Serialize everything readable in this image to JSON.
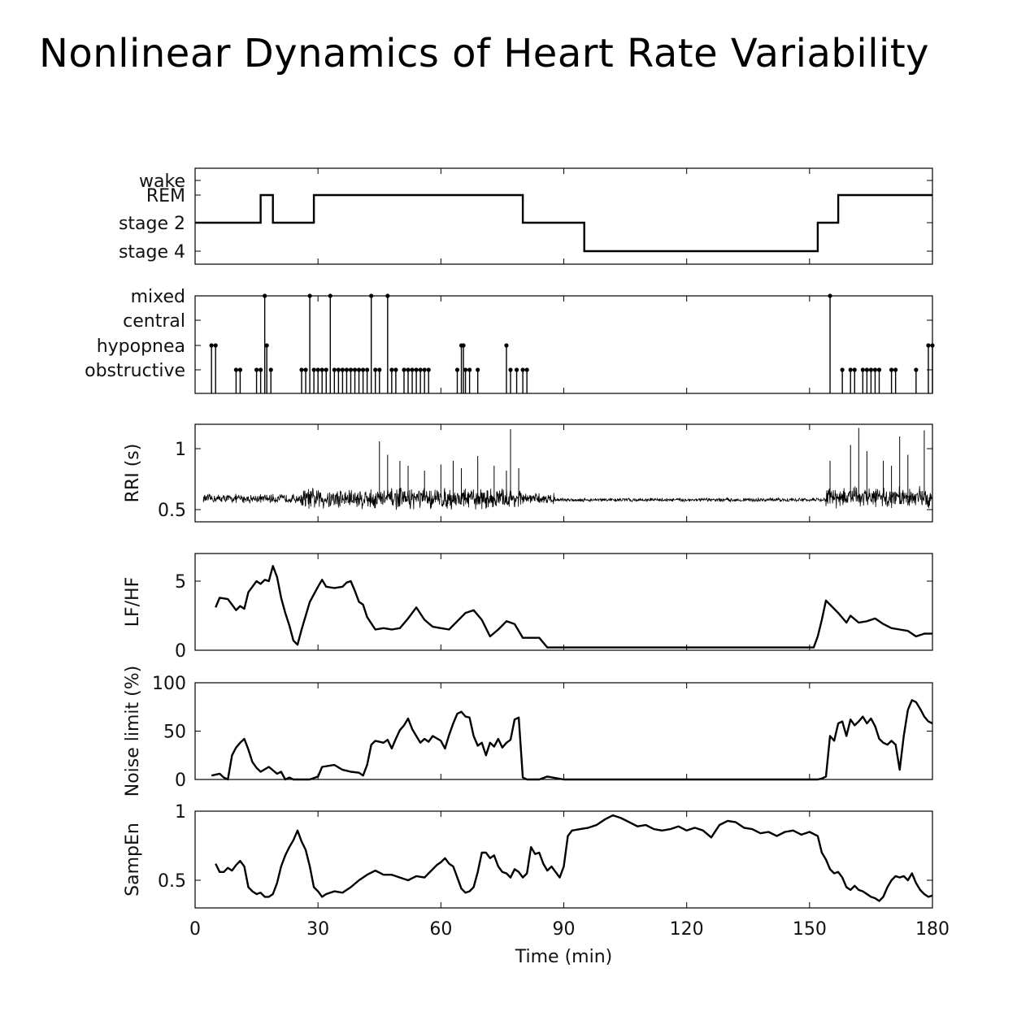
{
  "title": "Nonlinear Dynamics of Heart Rate Variability",
  "chart_data": {
    "type": "line",
    "xlabel": "Time (min)",
    "xlim": [
      0,
      180
    ],
    "xticks": [
      "0",
      "30",
      "60",
      "90",
      "120",
      "150",
      "180"
    ],
    "line_color": "#000000",
    "panels": [
      {
        "key": "sleep",
        "type": "step",
        "ylabel": "",
        "categories": [
          "wake",
          "REM",
          "stage 2",
          "stage 4"
        ],
        "x": [
          0,
          16,
          16,
          19,
          19,
          29,
          29,
          80,
          80,
          83,
          83,
          95,
          95,
          152,
          152,
          157,
          157,
          180
        ],
        "y": [
          "stage 2",
          "stage 2",
          "REM",
          "REM",
          "stage 2",
          "stage 2",
          "REM",
          "REM",
          "stage 2",
          "stage 2",
          "stage 2",
          "stage 2",
          "stage 4",
          "stage 4",
          "stage 2",
          "stage 2",
          "REM",
          "REM"
        ]
      },
      {
        "key": "apnea",
        "type": "stem",
        "ylabel": "",
        "categories": [
          "mixed",
          "central",
          "hypopnea",
          "obstructive"
        ],
        "events": [
          {
            "t": 4,
            "type": "hypopnea"
          },
          {
            "t": 5,
            "type": "hypopnea"
          },
          {
            "t": 10,
            "type": "obstructive"
          },
          {
            "t": 11,
            "type": "obstructive"
          },
          {
            "t": 15,
            "type": "obstructive"
          },
          {
            "t": 16,
            "type": "obstructive"
          },
          {
            "t": 17,
            "type": "mixed"
          },
          {
            "t": 17.5,
            "type": "hypopnea"
          },
          {
            "t": 18.5,
            "type": "obstructive"
          },
          {
            "t": 26,
            "type": "obstructive"
          },
          {
            "t": 27,
            "type": "obstructive"
          },
          {
            "t": 28,
            "type": "mixed"
          },
          {
            "t": 29,
            "type": "obstructive"
          },
          {
            "t": 30,
            "type": "obstructive"
          },
          {
            "t": 31,
            "type": "obstructive"
          },
          {
            "t": 32,
            "type": "obstructive"
          },
          {
            "t": 33,
            "type": "mixed"
          },
          {
            "t": 34,
            "type": "obstructive"
          },
          {
            "t": 35,
            "type": "obstructive"
          },
          {
            "t": 36,
            "type": "obstructive"
          },
          {
            "t": 37,
            "type": "obstructive"
          },
          {
            "t": 38,
            "type": "obstructive"
          },
          {
            "t": 39,
            "type": "obstructive"
          },
          {
            "t": 40,
            "type": "obstructive"
          },
          {
            "t": 41,
            "type": "obstructive"
          },
          {
            "t": 42,
            "type": "obstructive"
          },
          {
            "t": 43,
            "type": "mixed"
          },
          {
            "t": 44,
            "type": "obstructive"
          },
          {
            "t": 45,
            "type": "obstructive"
          },
          {
            "t": 47,
            "type": "mixed"
          },
          {
            "t": 48,
            "type": "obstructive"
          },
          {
            "t": 49,
            "type": "obstructive"
          },
          {
            "t": 51,
            "type": "obstructive"
          },
          {
            "t": 52,
            "type": "obstructive"
          },
          {
            "t": 53,
            "type": "obstructive"
          },
          {
            "t": 54,
            "type": "obstructive"
          },
          {
            "t": 55,
            "type": "obstructive"
          },
          {
            "t": 56,
            "type": "obstructive"
          },
          {
            "t": 57,
            "type": "obstructive"
          },
          {
            "t": 64,
            "type": "obstructive"
          },
          {
            "t": 65,
            "type": "hypopnea"
          },
          {
            "t": 65.5,
            "type": "hypopnea"
          },
          {
            "t": 66,
            "type": "obstructive"
          },
          {
            "t": 67,
            "type": "obstructive"
          },
          {
            "t": 69,
            "type": "obstructive"
          },
          {
            "t": 76,
            "type": "hypopnea"
          },
          {
            "t": 77,
            "type": "obstructive"
          },
          {
            "t": 78.5,
            "type": "obstructive"
          },
          {
            "t": 80,
            "type": "obstructive"
          },
          {
            "t": 81,
            "type": "obstructive"
          },
          {
            "t": 155,
            "type": "mixed"
          },
          {
            "t": 158,
            "type": "obstructive"
          },
          {
            "t": 160,
            "type": "obstructive"
          },
          {
            "t": 161,
            "type": "obstructive"
          },
          {
            "t": 163,
            "type": "obstructive"
          },
          {
            "t": 164,
            "type": "obstructive"
          },
          {
            "t": 165,
            "type": "obstructive"
          },
          {
            "t": 166,
            "type": "obstructive"
          },
          {
            "t": 167,
            "type": "obstructive"
          },
          {
            "t": 170,
            "type": "obstructive"
          },
          {
            "t": 171,
            "type": "obstructive"
          },
          {
            "t": 176,
            "type": "obstructive"
          },
          {
            "t": 179,
            "type": "hypopnea"
          },
          {
            "t": 180,
            "type": "hypopnea"
          }
        ]
      },
      {
        "key": "rri",
        "type": "noise",
        "ylabel": "RRI (s)",
        "ylim": [
          0.4,
          1.2
        ],
        "yticks": [
          0.5,
          1
        ],
        "ytick_labels": [
          "0.5",
          "1"
        ],
        "segments": [
          {
            "x0": 2,
            "x1": 26,
            "base": 0.59,
            "amp": 0.03
          },
          {
            "x0": 26,
            "x1": 80,
            "base": 0.59,
            "amp": 0.07
          },
          {
            "x0": 80,
            "x1": 88,
            "base": 0.59,
            "amp": 0.035
          },
          {
            "x0": 88,
            "x1": 154,
            "base": 0.58,
            "amp": 0.012
          },
          {
            "x0": 154,
            "x1": 180,
            "base": 0.6,
            "amp": 0.07
          }
        ],
        "spikes": [
          {
            "t": 45,
            "y": 1.06
          },
          {
            "t": 47,
            "y": 0.95
          },
          {
            "t": 50,
            "y": 0.9
          },
          {
            "t": 52,
            "y": 0.86
          },
          {
            "t": 56,
            "y": 0.82
          },
          {
            "t": 60,
            "y": 0.87
          },
          {
            "t": 63,
            "y": 0.9
          },
          {
            "t": 65,
            "y": 0.84
          },
          {
            "t": 69,
            "y": 0.94
          },
          {
            "t": 73,
            "y": 0.86
          },
          {
            "t": 76,
            "y": 0.82
          },
          {
            "t": 77,
            "y": 1.16
          },
          {
            "t": 79,
            "y": 0.84
          },
          {
            "t": 155,
            "y": 0.9
          },
          {
            "t": 160,
            "y": 1.03
          },
          {
            "t": 162,
            "y": 1.17
          },
          {
            "t": 164,
            "y": 0.98
          },
          {
            "t": 168,
            "y": 0.9
          },
          {
            "t": 170,
            "y": 0.86
          },
          {
            "t": 172,
            "y": 1.1
          },
          {
            "t": 174,
            "y": 0.95
          },
          {
            "t": 178,
            "y": 1.15
          }
        ]
      },
      {
        "key": "lfhf",
        "type": "line",
        "ylabel": "LF/HF",
        "ylim": [
          0,
          7
        ],
        "yticks": [
          0,
          5
        ],
        "ytick_labels": [
          "0",
          "5"
        ],
        "x": [
          5,
          6,
          8,
          9,
          10,
          11,
          12,
          13,
          14,
          15,
          16,
          17,
          18,
          19,
          20,
          21,
          22,
          23,
          24,
          25,
          26,
          28,
          30,
          31,
          32,
          34,
          36,
          37,
          38,
          39,
          40,
          41,
          42,
          44,
          46,
          48,
          50,
          52,
          54,
          56,
          58,
          60,
          62,
          64,
          66,
          68,
          70,
          72,
          74,
          76,
          78,
          80,
          82,
          84,
          86,
          88,
          90,
          92,
          96,
          100,
          110,
          120,
          130,
          140,
          150,
          151,
          152,
          153,
          154,
          155,
          157,
          159,
          160,
          162,
          164,
          166,
          168,
          170,
          172,
          174,
          176,
          178,
          180
        ],
        "y": [
          3.1,
          3.8,
          3.7,
          3.3,
          2.9,
          3.2,
          3.0,
          4.2,
          4.6,
          5.0,
          4.8,
          5.1,
          5.0,
          6.1,
          5.3,
          3.8,
          2.7,
          1.8,
          0.7,
          0.4,
          1.5,
          3.5,
          4.6,
          5.1,
          4.6,
          4.5,
          4.6,
          4.9,
          5.0,
          4.3,
          3.5,
          3.3,
          2.4,
          1.5,
          1.6,
          1.5,
          1.6,
          2.3,
          3.1,
          2.2,
          1.7,
          1.6,
          1.5,
          2.1,
          2.7,
          2.9,
          2.2,
          1.0,
          1.5,
          2.1,
          1.9,
          0.9,
          0.9,
          0.9,
          0.2,
          0.2,
          0.2,
          0.2,
          0.2,
          0.2,
          0.2,
          0.2,
          0.2,
          0.2,
          0.2,
          0.2,
          1.0,
          2.2,
          3.6,
          3.3,
          2.7,
          2.0,
          2.5,
          2.0,
          2.1,
          2.3,
          1.9,
          1.6,
          1.5,
          1.4,
          1.0,
          1.2,
          1.2
        ]
      },
      {
        "key": "noise",
        "type": "line",
        "ylabel": "Noise limit (%)",
        "ylim": [
          0,
          100
        ],
        "yticks": [
          0,
          50,
          100
        ],
        "ytick_labels": [
          "0",
          "50",
          "100"
        ],
        "x": [
          4,
          6,
          7,
          8,
          9,
          10,
          11,
          12,
          13,
          14,
          15,
          16,
          18,
          20,
          21,
          22,
          23,
          24,
          25,
          27,
          28,
          30,
          31,
          34,
          36,
          38,
          40,
          41,
          42,
          43,
          44,
          46,
          47,
          48,
          49,
          50,
          51,
          52,
          53,
          54,
          55,
          56,
          57,
          58,
          60,
          61,
          62,
          63,
          64,
          65,
          66,
          67,
          68,
          69,
          70,
          71,
          72,
          73,
          74,
          75,
          76,
          77,
          78,
          79,
          80,
          81,
          82,
          83,
          84,
          86,
          90,
          100,
          120,
          140,
          150,
          151,
          152,
          153,
          154,
          155,
          156,
          157,
          158,
          159,
          160,
          161,
          162,
          163,
          164,
          165,
          166,
          167,
          168,
          169,
          170,
          171,
          172,
          173,
          174,
          175,
          176,
          177,
          178,
          179,
          180
        ],
        "y": [
          4,
          6,
          2,
          0,
          25,
          33,
          38,
          42,
          31,
          18,
          12,
          8,
          13,
          6,
          8,
          0,
          2,
          0,
          0,
          0,
          0,
          3,
          13,
          15,
          10,
          8,
          7,
          4,
          15,
          36,
          40,
          38,
          41,
          32,
          42,
          51,
          56,
          63,
          52,
          45,
          38,
          42,
          39,
          45,
          40,
          32,
          46,
          58,
          68,
          70,
          65,
          64,
          45,
          35,
          38,
          25,
          38,
          34,
          42,
          33,
          38,
          41,
          62,
          64,
          2,
          0,
          0,
          0,
          0,
          3,
          0,
          0,
          0,
          0,
          0,
          0,
          0,
          1,
          3,
          45,
          40,
          58,
          60,
          45,
          62,
          56,
          60,
          65,
          58,
          63,
          55,
          42,
          38,
          36,
          40,
          36,
          10,
          45,
          72,
          82,
          80,
          73,
          65,
          60,
          58
        ]
      },
      {
        "key": "sampen",
        "type": "line",
        "ylabel": "SampEn",
        "ylim": [
          0.3,
          1.0
        ],
        "yticks": [
          0.5,
          1
        ],
        "ytick_labels": [
          "0.5",
          "1"
        ],
        "x": [
          5,
          6,
          7,
          8,
          9,
          10,
          11,
          12,
          13,
          14,
          15,
          16,
          17,
          18,
          19,
          20,
          21,
          22,
          23,
          24,
          25,
          26,
          27,
          28,
          29,
          30,
          31,
          32,
          34,
          36,
          38,
          40,
          42,
          44,
          46,
          48,
          50,
          52,
          54,
          56,
          57,
          58,
          59,
          60,
          61,
          62,
          63,
          64,
          65,
          66,
          67,
          68,
          69,
          70,
          71,
          72,
          73,
          74,
          75,
          76,
          77,
          78,
          79,
          80,
          81,
          82,
          83,
          84,
          85,
          86,
          87,
          88,
          89,
          90,
          91,
          92,
          94,
          96,
          98,
          100,
          102,
          104,
          106,
          108,
          110,
          112,
          114,
          116,
          118,
          120,
          122,
          124,
          126,
          128,
          130,
          132,
          134,
          136,
          138,
          140,
          142,
          144,
          146,
          148,
          150,
          152,
          153,
          154,
          155,
          156,
          157,
          158,
          159,
          160,
          161,
          162,
          163,
          164,
          165,
          166,
          167,
          168,
          169,
          170,
          171,
          172,
          173,
          174,
          175,
          176,
          177,
          178,
          179,
          180
        ],
        "y": [
          0.62,
          0.56,
          0.56,
          0.59,
          0.57,
          0.61,
          0.64,
          0.6,
          0.45,
          0.42,
          0.4,
          0.41,
          0.38,
          0.38,
          0.4,
          0.48,
          0.6,
          0.68,
          0.74,
          0.79,
          0.86,
          0.78,
          0.72,
          0.6,
          0.45,
          0.42,
          0.38,
          0.4,
          0.42,
          0.41,
          0.45,
          0.5,
          0.54,
          0.57,
          0.54,
          0.54,
          0.52,
          0.5,
          0.53,
          0.52,
          0.55,
          0.58,
          0.61,
          0.63,
          0.66,
          0.62,
          0.6,
          0.52,
          0.44,
          0.41,
          0.42,
          0.45,
          0.56,
          0.7,
          0.7,
          0.66,
          0.68,
          0.6,
          0.56,
          0.55,
          0.52,
          0.58,
          0.56,
          0.52,
          0.55,
          0.74,
          0.69,
          0.7,
          0.62,
          0.57,
          0.6,
          0.56,
          0.52,
          0.6,
          0.82,
          0.86,
          0.87,
          0.88,
          0.9,
          0.94,
          0.97,
          0.95,
          0.92,
          0.89,
          0.9,
          0.87,
          0.86,
          0.87,
          0.89,
          0.86,
          0.88,
          0.86,
          0.81,
          0.9,
          0.93,
          0.92,
          0.88,
          0.87,
          0.84,
          0.85,
          0.82,
          0.85,
          0.86,
          0.83,
          0.85,
          0.82,
          0.7,
          0.65,
          0.58,
          0.55,
          0.56,
          0.52,
          0.45,
          0.43,
          0.46,
          0.43,
          0.42,
          0.4,
          0.38,
          0.37,
          0.35,
          0.38,
          0.45,
          0.5,
          0.53,
          0.52,
          0.53,
          0.5,
          0.55,
          0.48,
          0.43,
          0.4,
          0.38,
          0.39
        ]
      }
    ]
  }
}
